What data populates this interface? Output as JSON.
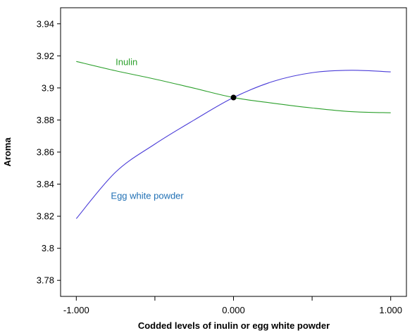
{
  "chart_data": {
    "type": "line",
    "title": "",
    "xlabel": "Codded levels of inulin or egg white powder",
    "ylabel": "Aroma",
    "xlim": [
      -1.1,
      1.1
    ],
    "ylim": [
      3.77,
      3.95
    ],
    "x_ticks": [
      -1,
      -0.5,
      0,
      0.5,
      1
    ],
    "x_tick_labels": [
      "-1.000",
      "",
      "0.000",
      "",
      "1.000"
    ],
    "y_ticks": [
      3.78,
      3.8,
      3.82,
      3.84,
      3.86,
      3.88,
      3.9,
      3.92,
      3.94
    ],
    "y_tick_labels": [
      "3.78",
      "3.8",
      "3.82",
      "3.84",
      "3.86",
      "3.88",
      "3.9",
      "3.92",
      "3.94"
    ],
    "grid": false,
    "series": [
      {
        "name": "Inulin",
        "color": "#2ca02c",
        "label_color": "#2ca02c",
        "x": [
          -1.0,
          -0.75,
          -0.5,
          -0.25,
          0.0,
          0.25,
          0.5,
          0.75,
          1.0
        ],
        "y": [
          3.9165,
          3.9107,
          3.9055,
          3.8998,
          3.894,
          3.8905,
          3.8875,
          3.8852,
          3.8845
        ]
      },
      {
        "name": "Egg white powder",
        "color": "#4a3cd8",
        "label_color": "#1f6fb4",
        "x": [
          -1.0,
          -0.75,
          -0.5,
          -0.25,
          0.0,
          0.25,
          0.5,
          0.75,
          1.0
        ],
        "y": [
          3.8185,
          3.8475,
          3.865,
          3.88,
          3.894,
          3.904,
          3.9095,
          3.911,
          3.91
        ]
      }
    ],
    "intersection": {
      "x": 0.0,
      "y": 3.894
    }
  }
}
